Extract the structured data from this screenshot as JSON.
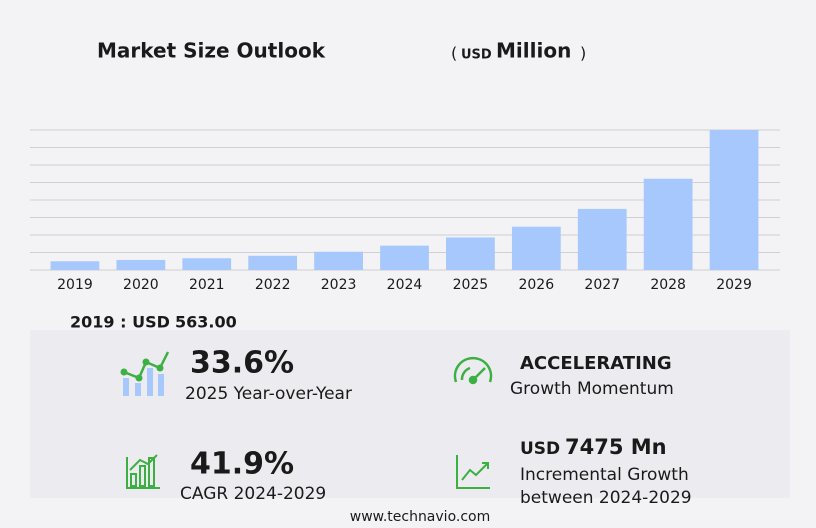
{
  "chart_data": {
    "type": "bar",
    "title": "Market Size Outlook",
    "title_unit": [
      "(",
      "USD",
      "Million",
      ")"
    ],
    "categories": [
      "2019",
      "2020",
      "2021",
      "2022",
      "2023",
      "2024",
      "2025",
      "2026",
      "2027",
      "2028",
      "2029"
    ],
    "values": [
      563,
      650,
      760,
      920,
      1180,
      1574,
      2103,
      2800,
      3950,
      5900,
      9049
    ],
    "color": "#a6c8fd",
    "ylim": [
      0,
      9049
    ]
  },
  "base_year": {
    "label": "2019 : USD",
    "value": "563.00"
  },
  "cards": {
    "yoy": {
      "value": "33.6%",
      "label": "2025 Year-over-Year"
    },
    "momentum": {
      "value": "ACCELERATING",
      "label": "Growth Momentum"
    },
    "cagr": {
      "value": "41.9%",
      "label": "CAGR 2024-2029"
    },
    "incremental": {
      "unit": "USD",
      "value": "7475 Mn",
      "label": [
        "Incremental Growth",
        "between 2024-2029"
      ]
    }
  },
  "footer": "www.technavio.com"
}
